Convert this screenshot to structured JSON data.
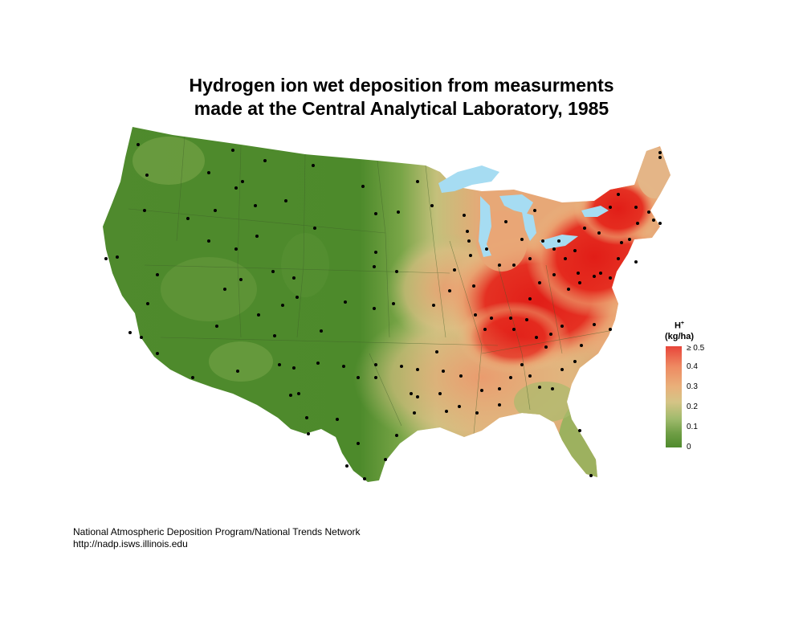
{
  "title": {
    "line1": "Hydrogen ion wet deposition from measurments",
    "line2": "made at the Central Analytical Laboratory, 1985"
  },
  "legend": {
    "title_main": "H",
    "title_sup": "+",
    "title_unit": "(kg/ha)",
    "labels": [
      "≥ 0.5",
      "0.4",
      "0.3",
      "0.2",
      "0.1",
      "0"
    ],
    "colors": {
      "high": "#e8453a",
      "mid": "#e9b07a",
      "low": "#4f8a2d"
    }
  },
  "map": {
    "region": "contiguous United States",
    "water_color": "#a6dcf2",
    "site_marker_color": "#000000",
    "base_color": "#4f8a2d",
    "high_color": "#e8221b"
  },
  "footer": {
    "line1": "National Atmospheric Deposition Program/National Trends Network",
    "line2": "http://nadp.isws.illinois.edu"
  }
}
